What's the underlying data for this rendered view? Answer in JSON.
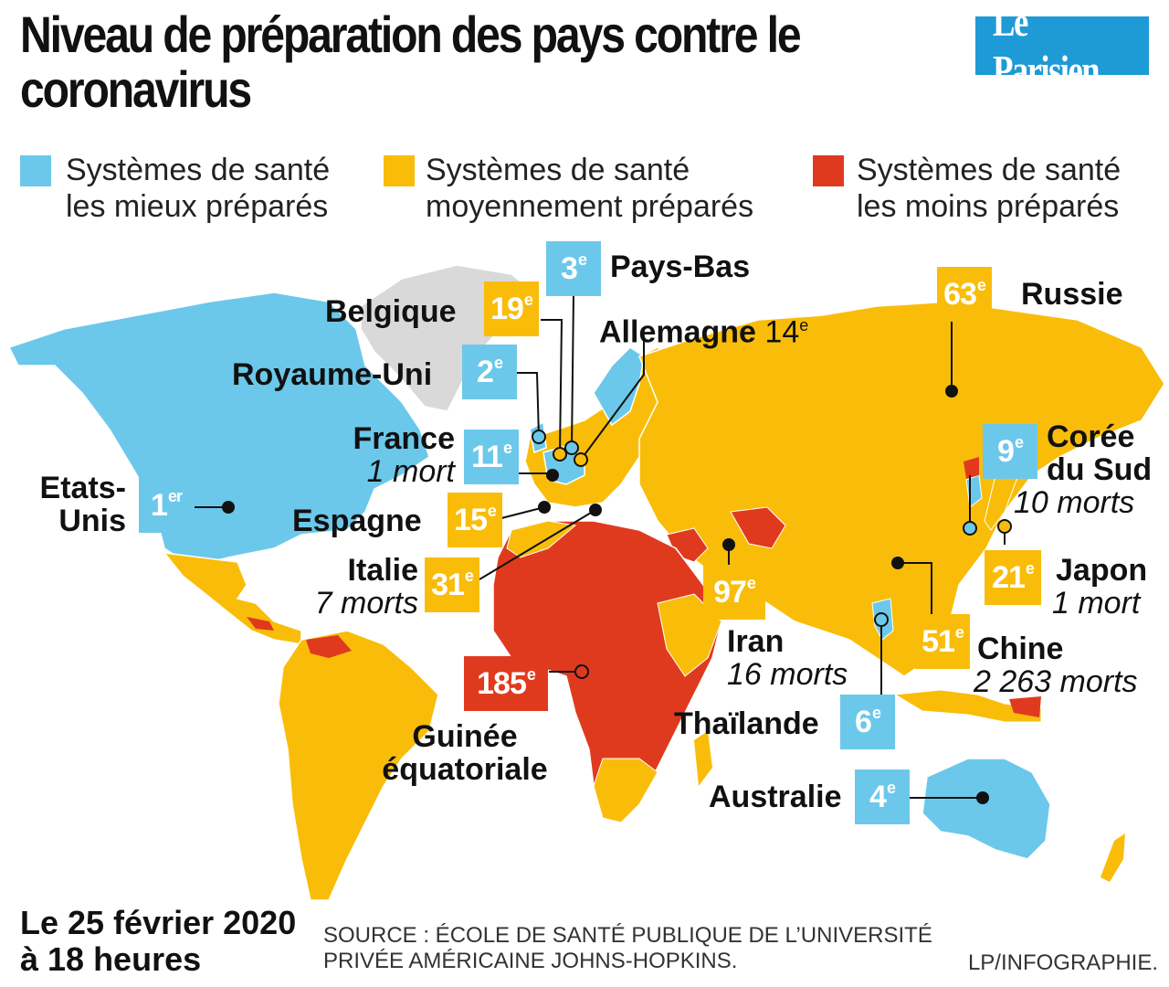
{
  "title": "Niveau de préparation des pays contre le coronavirus",
  "logo": "Le Parisien",
  "legend": [
    {
      "label_1": "Systèmes de santé",
      "label_2": "les mieux préparés",
      "color": "#6bc8ea"
    },
    {
      "label_1": "Systèmes de santé",
      "label_2": "moyennement préparés",
      "color": "#f9bd09"
    },
    {
      "label_1": "Systèmes de santé",
      "label_2": "les moins préparés",
      "color": "#e03a1e"
    }
  ],
  "countries": {
    "usa": {
      "name_1": "Etats-",
      "name_2": "Unis",
      "rank": "1",
      "suffix": "er",
      "category": "best"
    },
    "uk": {
      "name": "Royaume-Uni",
      "rank": "2",
      "suffix": "e",
      "category": "best"
    },
    "netherlands": {
      "name": "Pays-Bas",
      "rank": "3",
      "suffix": "e",
      "category": "best"
    },
    "belgium": {
      "name": "Belgique",
      "rank": "19",
      "suffix": "e",
      "category": "medium"
    },
    "germany": {
      "name": "Allemagne",
      "rank_text": "14",
      "suffix": "e"
    },
    "france": {
      "name": "France",
      "deaths": "1 mort",
      "rank": "11",
      "suffix": "e",
      "category": "best"
    },
    "spain": {
      "name": "Espagne",
      "rank": "15",
      "suffix": "e",
      "category": "medium"
    },
    "italy": {
      "name": "Italie",
      "deaths": "7 morts",
      "rank": "31",
      "suffix": "e",
      "category": "medium"
    },
    "guinea": {
      "name_1": "Guinée",
      "name_2": "équatoriale",
      "rank": "185",
      "suffix": "e",
      "category": "worst"
    },
    "iran": {
      "name": "Iran",
      "deaths": "16 morts",
      "rank": "97",
      "suffix": "e",
      "category": "medium"
    },
    "russia": {
      "name": "Russie",
      "rank": "63",
      "suffix": "e",
      "category": "medium"
    },
    "south_korea": {
      "name_1": "Corée",
      "name_2": "du Sud",
      "deaths": "10 morts",
      "rank": "9",
      "suffix": "e",
      "category": "best"
    },
    "japan": {
      "name": "Japon",
      "deaths": "1 mort",
      "rank": "21",
      "suffix": "e",
      "category": "medium"
    },
    "china": {
      "name": "Chine",
      "deaths": "2 263 morts",
      "rank": "51",
      "suffix": "e",
      "category": "medium"
    },
    "thailand": {
      "name": "Thaïlande",
      "rank": "6",
      "suffix": "e",
      "category": "best"
    },
    "australia": {
      "name": "Australie",
      "rank": "4",
      "suffix": "e",
      "category": "best"
    }
  },
  "date_1": "Le 25 février 2020",
  "date_2": "à 18 heures",
  "source_1": "SOURCE : ÉCOLE DE SANTÉ PUBLIQUE DE L’UNIVERSITÉ",
  "source_2": "PRIVÉE AMÉRICAINE JOHNS-HOPKINS.",
  "credit": "LP/INFOGRAPHIE.",
  "colors": {
    "best": "#6bc8ea",
    "medium": "#f9bd09",
    "worst": "#e03a1e",
    "greenland": "#d9d9d9"
  }
}
